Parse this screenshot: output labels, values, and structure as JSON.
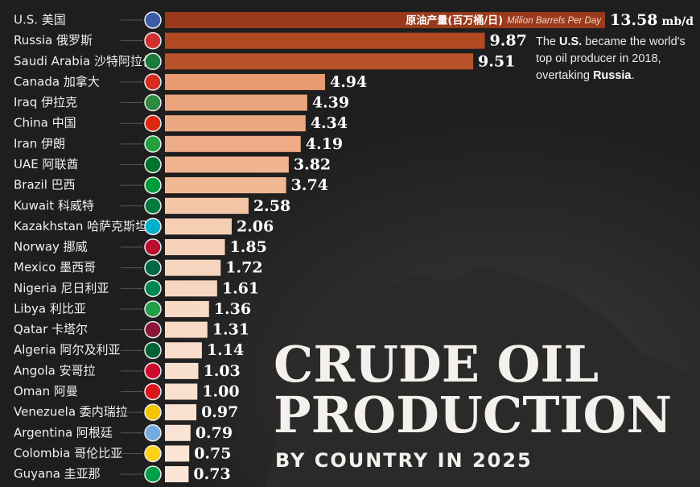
{
  "chart_data": {
    "type": "bar",
    "orientation": "horizontal",
    "title": [
      "CRUDE OIL",
      "PRODUCTION"
    ],
    "subtitle": "BY COUNTRY IN 2025",
    "series_label_zh": "原油产量(百万桶/日)",
    "series_label": "Million Barrels Per Day",
    "unit": "mb/d",
    "annotation": [
      "The ",
      "U.S.",
      " became the world's top oil producer in 2018, overtaking ",
      "Russia",
      "."
    ],
    "categories": [
      "U.S. 美国",
      "Russia 俄罗斯",
      "Saudi Arabia 沙特阿拉伯",
      "Canada 加拿大",
      "Iraq 伊拉克",
      "China 中国",
      "Iran 伊朗",
      "UAE 阿联酋",
      "Brazil 巴西",
      "Kuwait 科威特",
      "Kazakhstan 哈萨克斯坦",
      "Norway 挪威",
      "Mexico 墨西哥",
      "Nigeria 尼日利亚",
      "Libya 利比亚",
      "Qatar 卡塔尔",
      "Algeria 阿尔及利亚",
      "Angola 安哥拉",
      "Oman 阿曼",
      "Venezuela 委内瑞拉",
      "Argentina 阿根廷",
      "Colombia 哥伦比亚",
      "Guyana 圭亚那"
    ],
    "values": [
      13.58,
      9.87,
      9.51,
      4.94,
      4.39,
      4.34,
      4.19,
      3.82,
      3.74,
      2.58,
      2.06,
      1.85,
      1.72,
      1.61,
      1.36,
      1.31,
      1.14,
      1.03,
      1.0,
      0.97,
      0.79,
      0.75,
      0.73
    ],
    "value_labels": [
      "13.58",
      "9.87",
      "9.51",
      "4.94",
      "4.39",
      "4.34",
      "4.19",
      "3.82",
      "3.74",
      "2.58",
      "2.06",
      "1.85",
      "1.72",
      "1.61",
      "1.36",
      "1.31",
      "1.14",
      "1.03",
      "1.00",
      "0.97",
      "0.79",
      "0.75",
      "0.73"
    ],
    "colors": [
      "#9a3a1b",
      "#b14a23",
      "#b9532b",
      "#e99a6e",
      "#eba57c",
      "#eca880",
      "#edac86",
      "#efb48f",
      "#f0b793",
      "#f3c6a8",
      "#f5ceb4",
      "#f6d2ba",
      "#f6d4bd",
      "#f7d6c0",
      "#f7d9c4",
      "#f8dac6",
      "#f8ddca",
      "#f8dfcd",
      "#f9e0cf",
      "#f9e1d0",
      "#f9e3d4",
      "#f9e4d5",
      "#fae5d7"
    ]
  }
}
